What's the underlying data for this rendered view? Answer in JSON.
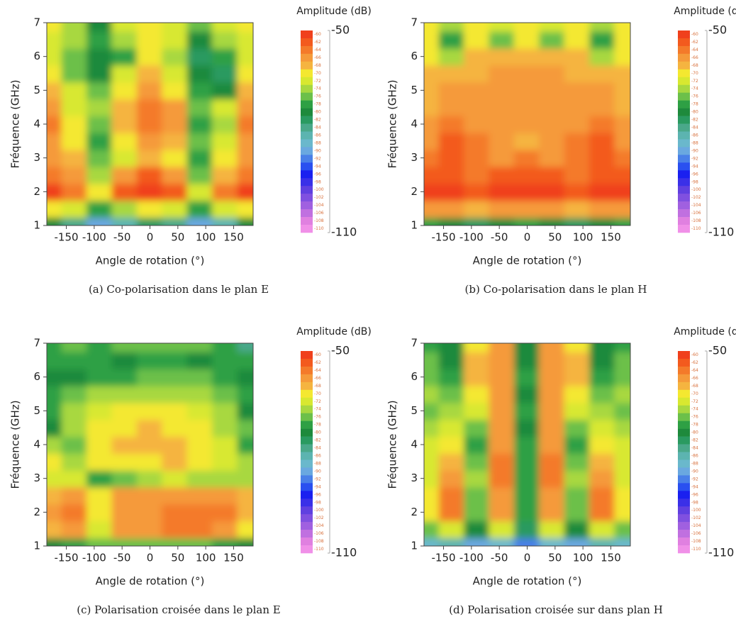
{
  "chart_data": [
    {
      "type": "heatmap",
      "caption": "(a)  Co-polarisation dans le plan E",
      "xlabel": "Angle de rotation (°)",
      "ylabel": "Fréquence (GHz)",
      "x": [
        -180,
        -135,
        -90,
        -45,
        0,
        45,
        90,
        135,
        180
      ],
      "y": [
        1,
        1.5,
        2,
        2.5,
        3,
        3.5,
        4,
        4.5,
        5,
        5.5,
        6,
        6.5,
        7
      ],
      "xlim": [
        -185,
        185
      ],
      "ylim": [
        1,
        7
      ],
      "xticks": [
        -150,
        -100,
        -50,
        0,
        50,
        100,
        150
      ],
      "yticks": [
        1,
        2,
        3,
        4,
        5,
        6,
        7
      ],
      "z": [
        [
          -80,
          -84,
          -90,
          -86,
          -82,
          -84,
          -90,
          -86,
          -80
        ],
        [
          -70,
          -72,
          -78,
          -74,
          -70,
          -72,
          -78,
          -72,
          -70
        ],
        [
          -60,
          -64,
          -70,
          -62,
          -58,
          -62,
          -72,
          -64,
          -60
        ],
        [
          -64,
          -66,
          -74,
          -66,
          -62,
          -66,
          -76,
          -68,
          -64
        ],
        [
          -66,
          -68,
          -76,
          -72,
          -68,
          -70,
          -78,
          -70,
          -66
        ],
        [
          -66,
          -70,
          -78,
          -70,
          -66,
          -68,
          -76,
          -72,
          -66
        ],
        [
          -64,
          -70,
          -76,
          -68,
          -64,
          -66,
          -78,
          -74,
          -64
        ],
        [
          -66,
          -72,
          -74,
          -68,
          -64,
          -66,
          -76,
          -72,
          -66
        ],
        [
          -68,
          -72,
          -76,
          -70,
          -66,
          -70,
          -78,
          -80,
          -68
        ],
        [
          -70,
          -76,
          -80,
          -72,
          -68,
          -72,
          -80,
          -82,
          -70
        ],
        [
          -72,
          -76,
          -80,
          -78,
          -70,
          -74,
          -82,
          -78,
          -72
        ],
        [
          -72,
          -74,
          -78,
          -74,
          -70,
          -72,
          -80,
          -74,
          -72
        ],
        [
          -70,
          -74,
          -80,
          -72,
          -70,
          -72,
          -76,
          -72,
          -70
        ]
      ],
      "colorbar": {
        "title": "Amplitude (dB)",
        "clim": [
          -110,
          -50
        ],
        "cticks": [
          -50,
          -110
        ],
        "levels": [
          -60,
          -62,
          -64,
          -66,
          -68,
          -70,
          -72,
          -74,
          -76,
          -78,
          -80,
          -82,
          -84,
          -86,
          -88,
          -90,
          -92,
          -94,
          -96,
          -98,
          -100,
          -102,
          -104,
          -106,
          -108,
          -110
        ],
        "level_colors": [
          "#f0401c",
          "#f35a1e",
          "#f47a2a",
          "#f59a3a",
          "#f5b440",
          "#f4e830",
          "#d8e830",
          "#a8d840",
          "#6cc04a",
          "#2ea044",
          "#1e8a3c",
          "#2a9a60",
          "#4aa88a",
          "#5cb4b0",
          "#6ab8cc",
          "#6aa8e0",
          "#4a80e8",
          "#2a50f0",
          "#1a20f0",
          "#3a30e8",
          "#6040e0",
          "#8050e0",
          "#a060e0",
          "#c070e0",
          "#e080e0",
          "#f090e8"
        ]
      }
    },
    {
      "type": "heatmap",
      "caption": "(b)  Co-polarisation dans le plan H",
      "xlabel": "Angle de rotation (°)",
      "ylabel": "Fréquence (GHz)",
      "x": [
        -180,
        -135,
        -90,
        -45,
        0,
        45,
        90,
        135,
        180
      ],
      "y": [
        1,
        1.5,
        2,
        2.5,
        3,
        3.5,
        4,
        4.5,
        5,
        5.5,
        6,
        6.5,
        7
      ],
      "xlim": [
        -185,
        185
      ],
      "ylim": [
        1,
        7
      ],
      "xticks": [
        -150,
        -100,
        -50,
        0,
        50,
        100,
        150
      ],
      "yticks": [
        1,
        2,
        3,
        4,
        5,
        6,
        7
      ],
      "z": [
        [
          -78,
          -80,
          -82,
          -80,
          -78,
          -80,
          -82,
          -80,
          -78
        ],
        [
          -66,
          -66,
          -68,
          -66,
          -66,
          -66,
          -68,
          -66,
          -66
        ],
        [
          -60,
          -60,
          -62,
          -60,
          -60,
          -60,
          -62,
          -60,
          -60
        ],
        [
          -62,
          -62,
          -64,
          -62,
          -62,
          -62,
          -64,
          -62,
          -62
        ],
        [
          -64,
          -62,
          -64,
          -66,
          -64,
          -66,
          -64,
          -62,
          -64
        ],
        [
          -66,
          -62,
          -64,
          -66,
          -68,
          -66,
          -64,
          -62,
          -66
        ],
        [
          -66,
          -64,
          -66,
          -66,
          -66,
          -66,
          -66,
          -64,
          -66
        ],
        [
          -68,
          -66,
          -66,
          -66,
          -66,
          -66,
          -66,
          -66,
          -68
        ],
        [
          -68,
          -66,
          -66,
          -66,
          -66,
          -66,
          -66,
          -66,
          -68
        ],
        [
          -68,
          -68,
          -68,
          -66,
          -66,
          -66,
          -68,
          -68,
          -68
        ],
        [
          -70,
          -74,
          -68,
          -68,
          -68,
          -68,
          -68,
          -74,
          -70
        ],
        [
          -70,
          -78,
          -70,
          -76,
          -70,
          -76,
          -70,
          -78,
          -70
        ],
        [
          -70,
          -74,
          -70,
          -72,
          -70,
          -72,
          -70,
          -74,
          -70
        ]
      ],
      "colorbar": {
        "title": "Amplitude (dB)",
        "clim": [
          -110,
          -50
        ],
        "cticks": [
          -50,
          -110
        ],
        "levels": [
          -60,
          -62,
          -64,
          -66,
          -68,
          -70,
          -72,
          -74,
          -76,
          -78,
          -80,
          -82,
          -84,
          -86,
          -88,
          -90,
          -92,
          -94,
          -96,
          -98,
          -100,
          -102,
          -104,
          -106,
          -108,
          -110
        ],
        "level_colors": [
          "#f0401c",
          "#f35a1e",
          "#f47a2a",
          "#f59a3a",
          "#f5b440",
          "#f4e830",
          "#d8e830",
          "#a8d840",
          "#6cc04a",
          "#2ea044",
          "#1e8a3c",
          "#2a9a60",
          "#4aa88a",
          "#5cb4b0",
          "#6ab8cc",
          "#6aa8e0",
          "#4a80e8",
          "#2a50f0",
          "#1a20f0",
          "#3a30e8",
          "#6040e0",
          "#8050e0",
          "#a060e0",
          "#c070e0",
          "#e080e0",
          "#f090e8"
        ]
      }
    },
    {
      "type": "heatmap",
      "caption": "(c)  Polarisation croisée dans le plan E",
      "xlabel": "Angle de rotation (°)",
      "ylabel": "Fréquence (GHz)",
      "x": [
        -180,
        -135,
        -90,
        -45,
        0,
        45,
        90,
        135,
        180
      ],
      "y": [
        1,
        1.5,
        2,
        2.5,
        3,
        3.5,
        4,
        4.5,
        5,
        5.5,
        6,
        6.5,
        7
      ],
      "xlim": [
        -185,
        185
      ],
      "ylim": [
        1,
        7
      ],
      "xticks": [
        -150,
        -100,
        -50,
        0,
        50,
        100,
        150
      ],
      "yticks": [
        1,
        2,
        3,
        4,
        5,
        6,
        7
      ],
      "z": [
        [
          -80,
          -78,
          -76,
          -76,
          -76,
          -76,
          -76,
          -78,
          -80
        ],
        [
          -68,
          -66,
          -72,
          -66,
          -66,
          -64,
          -64,
          -66,
          -70
        ],
        [
          -66,
          -64,
          -70,
          -66,
          -66,
          -64,
          -64,
          -64,
          -68
        ],
        [
          -68,
          -66,
          -70,
          -66,
          -66,
          -66,
          -66,
          -66,
          -68
        ],
        [
          -72,
          -72,
          -78,
          -76,
          -74,
          -72,
          -74,
          -74,
          -74
        ],
        [
          -70,
          -74,
          -70,
          -70,
          -70,
          -68,
          -70,
          -72,
          -74
        ],
        [
          -74,
          -76,
          -70,
          -68,
          -68,
          -68,
          -70,
          -72,
          -78
        ],
        [
          -80,
          -74,
          -70,
          -70,
          -68,
          -70,
          -70,
          -74,
          -76
        ],
        [
          -78,
          -74,
          -72,
          -70,
          -70,
          -70,
          -72,
          -74,
          -80
        ],
        [
          -78,
          -76,
          -74,
          -74,
          -74,
          -74,
          -74,
          -76,
          -78
        ],
        [
          -80,
          -80,
          -78,
          -78,
          -76,
          -76,
          -76,
          -78,
          -80
        ],
        [
          -78,
          -78,
          -78,
          -80,
          -78,
          -78,
          -80,
          -78,
          -78
        ],
        [
          -78,
          -76,
          -78,
          -76,
          -76,
          -76,
          -76,
          -78,
          -84
        ]
      ],
      "colorbar": {
        "title": "Amplitude (dB)",
        "clim": [
          -110,
          -50
        ],
        "cticks": [
          -50,
          -110
        ],
        "levels": [
          -60,
          -62,
          -64,
          -66,
          -68,
          -70,
          -72,
          -74,
          -76,
          -78,
          -80,
          -82,
          -84,
          -86,
          -88,
          -90,
          -92,
          -94,
          -96,
          -98,
          -100,
          -102,
          -104,
          -106,
          -108,
          -110
        ],
        "level_colors": [
          "#f0401c",
          "#f35a1e",
          "#f47a2a",
          "#f59a3a",
          "#f5b440",
          "#f4e830",
          "#d8e830",
          "#a8d840",
          "#6cc04a",
          "#2ea044",
          "#1e8a3c",
          "#2a9a60",
          "#4aa88a",
          "#5cb4b0",
          "#6ab8cc",
          "#6aa8e0",
          "#4a80e8",
          "#2a50f0",
          "#1a20f0",
          "#3a30e8",
          "#6040e0",
          "#8050e0",
          "#a060e0",
          "#c070e0",
          "#e080e0",
          "#f090e8"
        ]
      }
    },
    {
      "type": "heatmap",
      "caption": "(d)  Polarisation croisée sur dans plan H",
      "xlabel": "Angle de rotation (°)",
      "ylabel": "Fréquence (GHz)",
      "x": [
        -180,
        -135,
        -90,
        -45,
        0,
        45,
        90,
        135,
        180
      ],
      "y": [
        1,
        1.5,
        2,
        2.5,
        3,
        3.5,
        4,
        4.5,
        5,
        5.5,
        6,
        6.5,
        7
      ],
      "xlim": [
        -185,
        185
      ],
      "ylim": [
        1,
        7
      ],
      "xticks": [
        -150,
        -100,
        -50,
        0,
        50,
        100,
        150
      ],
      "yticks": [
        1,
        2,
        3,
        4,
        5,
        6,
        7
      ],
      "z": [
        [
          -88,
          -86,
          -90,
          -88,
          -92,
          -88,
          -90,
          -86,
          -88
        ],
        [
          -76,
          -72,
          -80,
          -72,
          -82,
          -72,
          -80,
          -72,
          -76
        ],
        [
          -70,
          -64,
          -76,
          -66,
          -78,
          -66,
          -76,
          -64,
          -70
        ],
        [
          -70,
          -64,
          -76,
          -66,
          -78,
          -66,
          -76,
          -64,
          -70
        ],
        [
          -72,
          -66,
          -74,
          -64,
          -78,
          -64,
          -74,
          -66,
          -72
        ],
        [
          -72,
          -68,
          -76,
          -64,
          -78,
          -64,
          -76,
          -68,
          -72
        ],
        [
          -72,
          -70,
          -78,
          -66,
          -78,
          -66,
          -78,
          -70,
          -72
        ],
        [
          -74,
          -72,
          -76,
          -66,
          -80,
          -66,
          -76,
          -72,
          -74
        ],
        [
          -76,
          -74,
          -72,
          -66,
          -78,
          -66,
          -72,
          -74,
          -76
        ],
        [
          -74,
          -76,
          -70,
          -66,
          -80,
          -66,
          -70,
          -76,
          -74
        ],
        [
          -76,
          -78,
          -68,
          -66,
          -78,
          -66,
          -68,
          -78,
          -76
        ],
        [
          -76,
          -80,
          -68,
          -66,
          -80,
          -66,
          -68,
          -80,
          -76
        ],
        [
          -78,
          -80,
          -70,
          -66,
          -80,
          -66,
          -70,
          -80,
          -78
        ]
      ],
      "colorbar": {
        "title": "Amplitude (dB)",
        "clim": [
          -110,
          -50
        ],
        "cticks": [
          -50,
          -110
        ],
        "levels": [
          -60,
          -62,
          -64,
          -66,
          -68,
          -70,
          -72,
          -74,
          -76,
          -78,
          -80,
          -82,
          -84,
          -86,
          -88,
          -90,
          -92,
          -94,
          -96,
          -98,
          -100,
          -102,
          -104,
          -106,
          -108,
          -110
        ],
        "level_colors": [
          "#f0401c",
          "#f35a1e",
          "#f47a2a",
          "#f59a3a",
          "#f5b440",
          "#f4e830",
          "#d8e830",
          "#a8d840",
          "#6cc04a",
          "#2ea044",
          "#1e8a3c",
          "#2a9a60",
          "#4aa88a",
          "#5cb4b0",
          "#6ab8cc",
          "#6aa8e0",
          "#4a80e8",
          "#2a50f0",
          "#1a20f0",
          "#3a30e8",
          "#6040e0",
          "#8050e0",
          "#a060e0",
          "#c070e0",
          "#e080e0",
          "#f090e8"
        ]
      }
    }
  ]
}
